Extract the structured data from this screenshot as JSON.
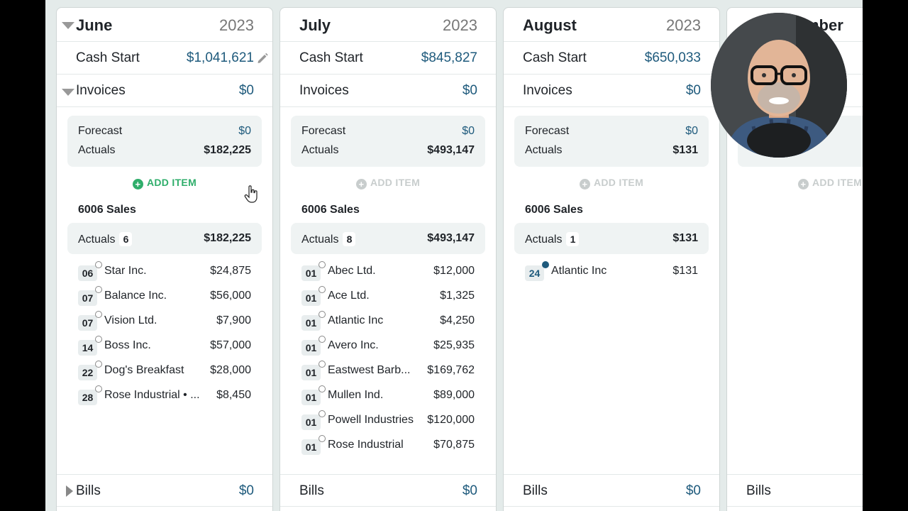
{
  "columns": [
    {
      "month": "June",
      "year": "2023",
      "cash_start_label": "Cash Start",
      "cash_start": "$1,041,621",
      "invoices_label": "Invoices",
      "invoices_value": "$0",
      "forecast_label": "Forecast",
      "forecast_value": "$0",
      "actuals_label": "Actuals",
      "actuals_value": "$182,225",
      "add_item": "ADD ITEM",
      "section_title": "6006 Sales",
      "section_actuals_label": "Actuals",
      "section_count": "6",
      "section_actuals_value": "$182,225",
      "items": [
        {
          "day": "06",
          "name": "Star Inc.",
          "amount": "$24,875"
        },
        {
          "day": "07",
          "name": "Balance Inc.",
          "amount": "$56,000"
        },
        {
          "day": "07",
          "name": "Vision Ltd.",
          "amount": "$7,900"
        },
        {
          "day": "14",
          "name": "Boss Inc.",
          "amount": "$57,000"
        },
        {
          "day": "22",
          "name": "Dog's Breakfast",
          "amount": "$28,000"
        },
        {
          "day": "28",
          "name": "Rose Industrial • ...",
          "amount": "$8,450"
        }
      ],
      "bills_label": "Bills",
      "bills_value": "$0"
    },
    {
      "month": "July",
      "year": "2023",
      "cash_start_label": "Cash Start",
      "cash_start": "$845,827",
      "invoices_label": "Invoices",
      "invoices_value": "$0",
      "forecast_label": "Forecast",
      "forecast_value": "$0",
      "actuals_label": "Actuals",
      "actuals_value": "$493,147",
      "add_item": "ADD ITEM",
      "section_title": "6006 Sales",
      "section_actuals_label": "Actuals",
      "section_count": "8",
      "section_actuals_value": "$493,147",
      "items": [
        {
          "day": "01",
          "name": "Abec Ltd.",
          "amount": "$12,000"
        },
        {
          "day": "01",
          "name": "Ace Ltd.",
          "amount": "$1,325"
        },
        {
          "day": "01",
          "name": "Atlantic Inc",
          "amount": "$4,250"
        },
        {
          "day": "01",
          "name": "Avero Inc.",
          "amount": "$25,935"
        },
        {
          "day": "01",
          "name": "Eastwest Barb...",
          "amount": "$169,762"
        },
        {
          "day": "01",
          "name": "Mullen Ind.",
          "amount": "$89,000"
        },
        {
          "day": "01",
          "name": "Powell Industries",
          "amount": "$120,000"
        },
        {
          "day": "01",
          "name": "Rose Industrial",
          "amount": "$70,875"
        }
      ],
      "bills_label": "Bills",
      "bills_value": "$0"
    },
    {
      "month": "August",
      "year": "2023",
      "cash_start_label": "Cash Start",
      "cash_start": "$650,033",
      "invoices_label": "Invoices",
      "invoices_value": "$0",
      "forecast_label": "Forecast",
      "forecast_value": "$0",
      "actuals_label": "Actuals",
      "actuals_value": "$131",
      "add_item": "ADD ITEM",
      "section_title": "6006 Sales",
      "section_actuals_label": "Actuals",
      "section_count": "1",
      "section_actuals_value": "$131",
      "items": [
        {
          "day": "24",
          "name": "Atlantic Inc",
          "amount": "$131"
        }
      ],
      "bills_label": "Bills",
      "bills_value": "$0"
    },
    {
      "month": "mber",
      "add_item": "ADD ITEM",
      "bills_label": "Bills"
    }
  ],
  "colors": {
    "accent": "#1e5a7c",
    "add_active": "#2fae6b",
    "background": "#e4ebea"
  },
  "icons": [
    "chevron-down-icon",
    "pencil-icon",
    "plus-circle-icon",
    "status-circle-icon",
    "chevron-right-icon",
    "pointer-cursor-icon"
  ]
}
